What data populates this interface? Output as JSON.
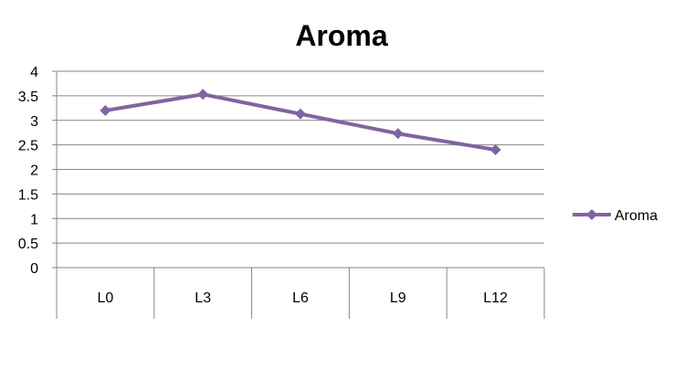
{
  "chart_data": {
    "type": "line",
    "title": "Aroma",
    "categories": [
      "L0",
      "L3",
      "L6",
      "L9",
      "L12"
    ],
    "series": [
      {
        "name": "Aroma",
        "values": [
          3.2,
          3.53,
          3.13,
          2.73,
          2.4
        ],
        "color": "#8064A2",
        "marker": "diamond"
      }
    ],
    "y_ticks": [
      "0",
      "0.5",
      "1",
      "1.5",
      "2",
      "2.5",
      "3",
      "3.5",
      "4"
    ],
    "ylim": [
      0,
      4
    ],
    "grid": "horizontal",
    "legend_position": "right",
    "colors": {
      "grid": "#868686",
      "axis": "#868686",
      "series": "#8064A2"
    }
  }
}
